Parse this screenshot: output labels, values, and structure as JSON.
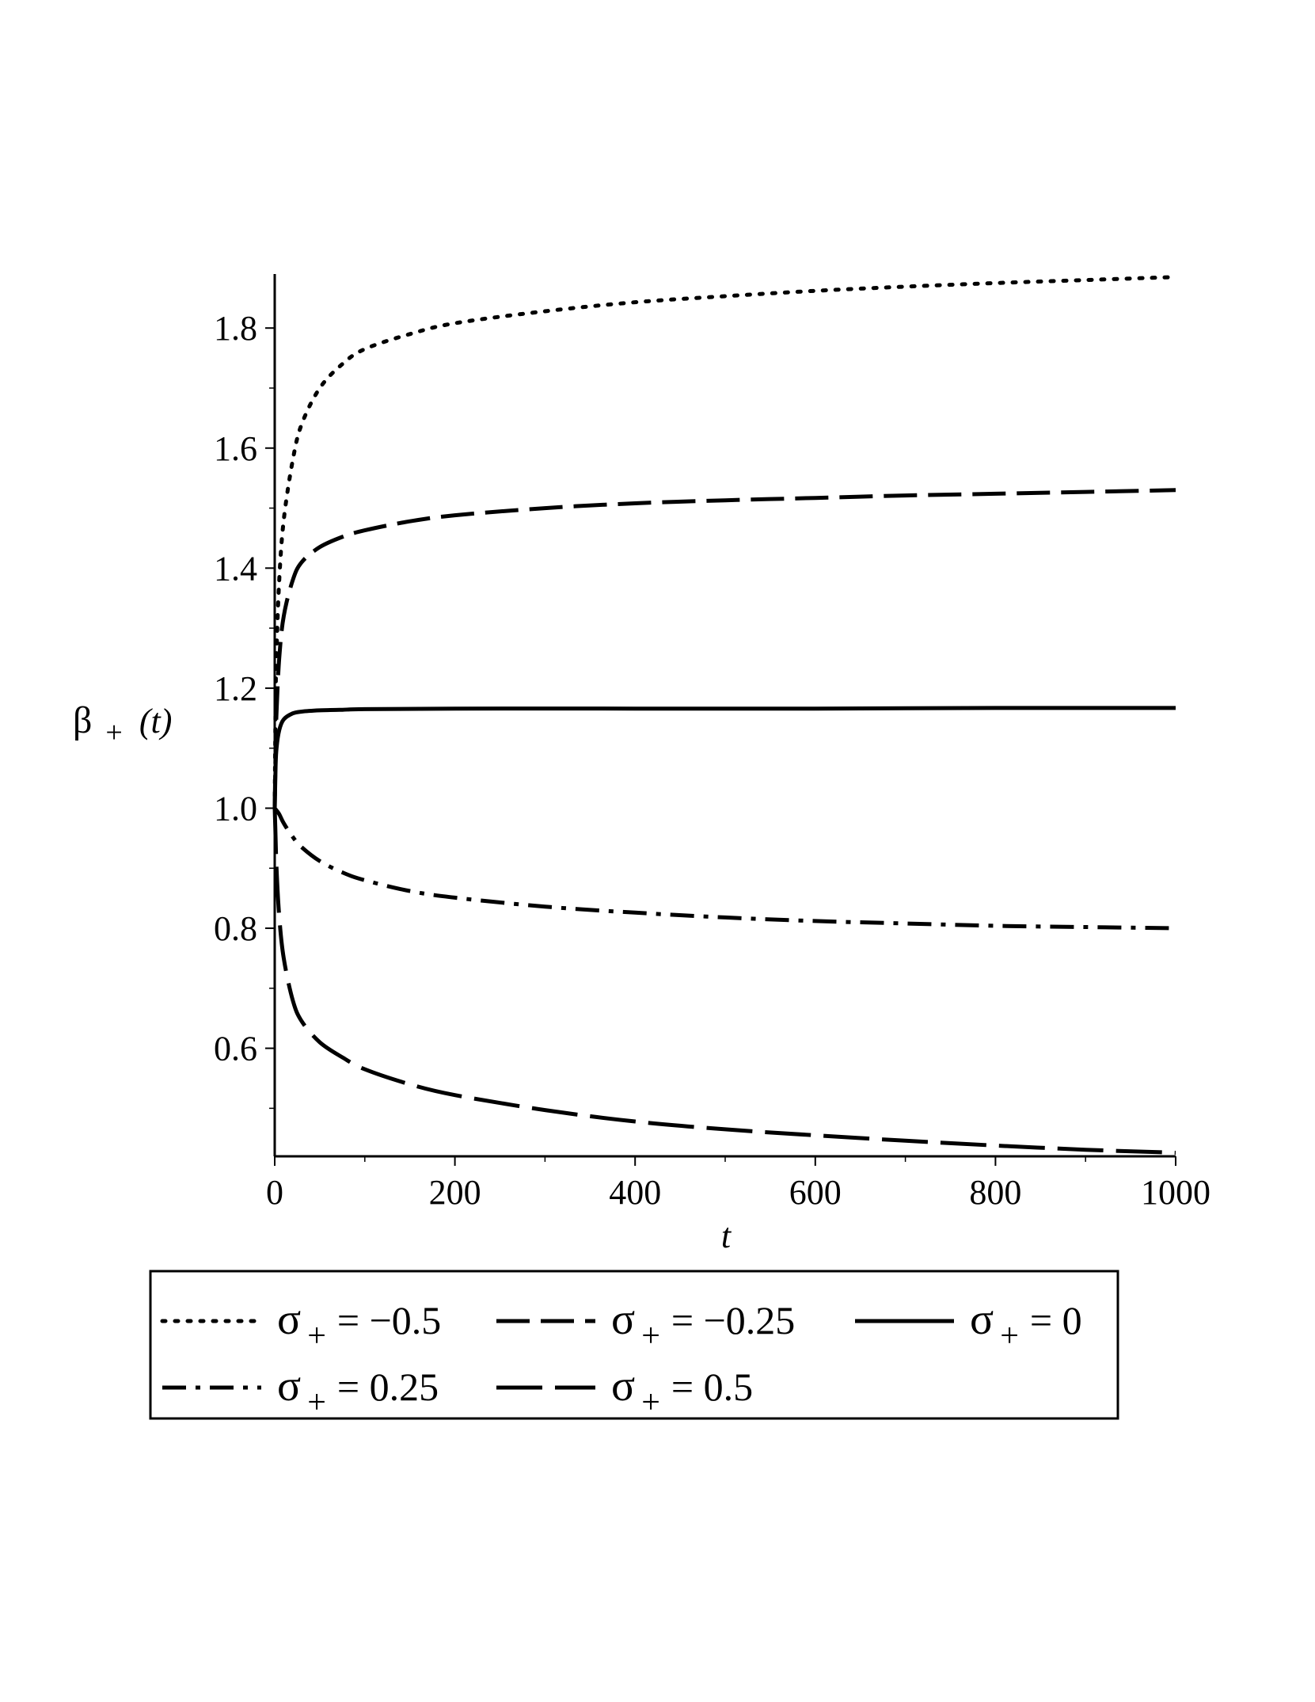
{
  "chart_data": {
    "type": "line",
    "title": "",
    "xlabel": "t",
    "ylabel": {
      "symbol": "β",
      "sub": "+",
      "arg": "(t)",
      "text": "β+(t)"
    },
    "xlim": [
      0,
      1000
    ],
    "ylim": [
      0.42,
      1.89
    ],
    "x_ticks": [
      0,
      200,
      400,
      600,
      800,
      1000
    ],
    "x_tick_labels": [
      "0",
      "200",
      "400",
      "600",
      "800",
      "1000"
    ],
    "y_ticks": [
      0.6,
      0.8,
      1.0,
      1.2,
      1.4,
      1.6,
      1.8
    ],
    "y_tick_labels": [
      "0.6",
      "0.8",
      "1.0",
      "1.2",
      "1.4",
      "1.6",
      "1.8"
    ],
    "grid": false,
    "legend_position": "bottom",
    "colors": {
      "line": "#000000",
      "background": "#ffffff"
    },
    "series": [
      {
        "name": "σ+ = −0.5",
        "legend": {
          "sym": "σ",
          "sub": "+",
          "rel": "= −0.5"
        },
        "style": "dotted",
        "x": [
          0,
          1,
          2,
          5,
          10,
          20,
          30,
          50,
          75,
          100,
          150,
          200,
          300,
          400,
          500,
          600,
          700,
          800,
          900,
          1000
        ],
        "values": [
          1.0,
          1.18,
          1.26,
          1.38,
          1.48,
          1.58,
          1.64,
          1.7,
          1.74,
          1.765,
          1.79,
          1.808,
          1.828,
          1.843,
          1.853,
          1.862,
          1.869,
          1.875,
          1.88,
          1.885
        ]
      },
      {
        "name": "σ+ = −0.25",
        "legend": {
          "sym": "σ",
          "sub": "+",
          "rel": "= −0.25"
        },
        "style": "dashed",
        "x": [
          0,
          1,
          2,
          5,
          10,
          20,
          30,
          50,
          75,
          100,
          150,
          200,
          300,
          400,
          500,
          600,
          700,
          800,
          900,
          1000
        ],
        "values": [
          1.0,
          1.1,
          1.16,
          1.25,
          1.32,
          1.38,
          1.41,
          1.435,
          1.452,
          1.463,
          1.478,
          1.488,
          1.5,
          1.508,
          1.513,
          1.517,
          1.521,
          1.524,
          1.527,
          1.53
        ]
      },
      {
        "name": "σ+ = 0",
        "legend": {
          "sym": "σ",
          "sub": "+",
          "rel": "= 0"
        },
        "style": "solid",
        "x": [
          0,
          1,
          2,
          5,
          10,
          20,
          30,
          50,
          75,
          100,
          200,
          400,
          600,
          800,
          1000
        ],
        "values": [
          1.0,
          1.07,
          1.1,
          1.13,
          1.148,
          1.158,
          1.161,
          1.163,
          1.164,
          1.165,
          1.166,
          1.166,
          1.166,
          1.167,
          1.167
        ]
      },
      {
        "name": "σ+ = 0.25",
        "legend": {
          "sym": "σ",
          "sub": "+",
          "rel": "= 0.25"
        },
        "style": "dashdot",
        "x": [
          0,
          5,
          10,
          20,
          30,
          50,
          75,
          100,
          150,
          200,
          300,
          400,
          500,
          600,
          700,
          800,
          900,
          1000
        ],
        "values": [
          1.0,
          0.99,
          0.975,
          0.952,
          0.935,
          0.912,
          0.893,
          0.88,
          0.862,
          0.851,
          0.836,
          0.826,
          0.818,
          0.812,
          0.808,
          0.804,
          0.802,
          0.8
        ]
      },
      {
        "name": "σ+ = 0.5",
        "legend": {
          "sym": "σ",
          "sub": "+",
          "rel": "= 0.5"
        },
        "style": "longdash",
        "x": [
          0,
          1,
          2,
          5,
          10,
          20,
          30,
          50,
          75,
          100,
          150,
          200,
          300,
          400,
          500,
          600,
          700,
          800,
          900,
          1000
        ],
        "values": [
          1.0,
          0.95,
          0.9,
          0.82,
          0.75,
          0.68,
          0.645,
          0.61,
          0.585,
          0.565,
          0.54,
          0.522,
          0.497,
          0.478,
          0.465,
          0.455,
          0.446,
          0.438,
          0.431,
          0.426
        ]
      }
    ]
  }
}
